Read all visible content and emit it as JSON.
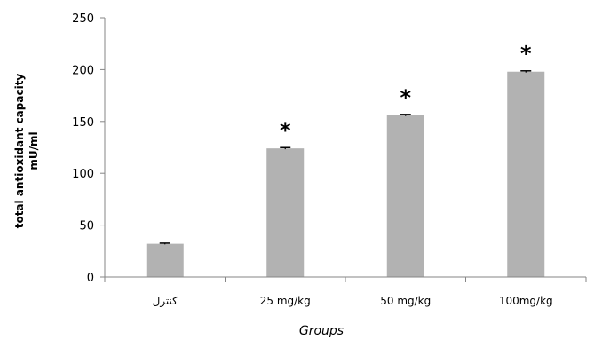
{
  "chart_data": {
    "type": "bar",
    "categories": [
      "كنترل",
      "25 mg/kg",
      "50 mg/kg",
      "100mg/kg"
    ],
    "values": [
      32,
      124,
      156,
      198
    ],
    "errors": [
      0.6,
      0.8,
      0.8,
      0.8
    ],
    "annotations": [
      "",
      "*",
      "*",
      "*"
    ],
    "title": "",
    "xlabel": "Groups",
    "ylabel_lines": [
      "total antioxidant capacity",
      "mU/ml"
    ],
    "ylim": [
      0,
      250
    ],
    "yticks": [
      0,
      50,
      100,
      150,
      200,
      250
    ],
    "grid": false,
    "legend": "none",
    "colors": {
      "bar": "#b2b2b2",
      "axis": "#868686",
      "text": "#000000"
    }
  }
}
